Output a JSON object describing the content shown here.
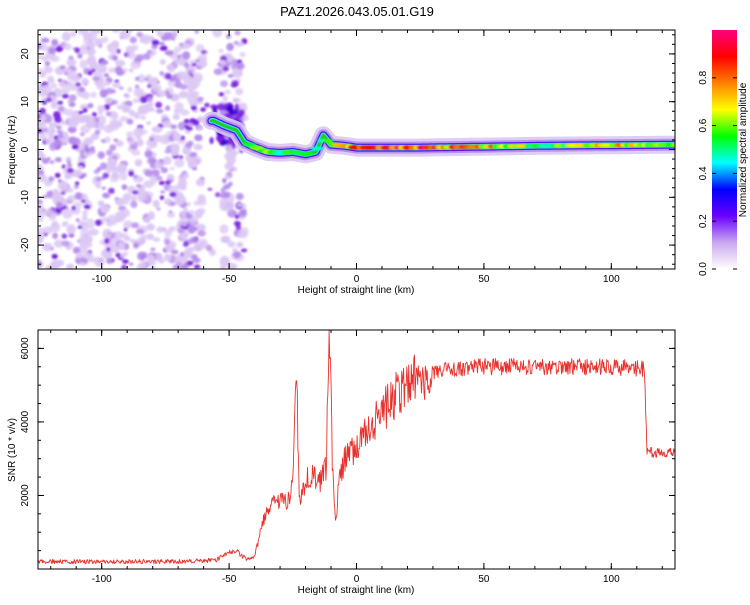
{
  "figure_title": "PAZ1.2026.043.05.01.G19",
  "colors": {
    "snr_line": "#e8312c",
    "axis": "#000000",
    "background": "#ffffff",
    "speckle_light": "#dcc8f4",
    "speckle_mid": "#b58ceb",
    "speckle_dark": "#7a1fe0",
    "ridge_cyan": "#33e0e0",
    "ridge_green": "#22cc22",
    "ridge_yellow": "#f0e000",
    "ridge_red": "#ee1133"
  },
  "chart_data": [
    {
      "id": "spectrogram",
      "type": "heatmap",
      "title": "PAZ1.2026.043.05.01.G19",
      "xlabel": "Height of straight line (km)",
      "ylabel": "Frequency (Hz)",
      "xlim": [
        -125,
        125
      ],
      "ylim": [
        -25,
        25
      ],
      "xticks": [
        -100,
        -50,
        0,
        50,
        100
      ],
      "xtick_labels": [
        "-100",
        "-50",
        "0",
        "50",
        "100"
      ],
      "yticks": [
        -20,
        -10,
        0,
        10,
        20
      ],
      "ytick_labels": [
        "-20",
        "-10",
        "0",
        "10",
        "20"
      ],
      "colorbar": {
        "label": "Normalized spectral amplitude",
        "range": [
          0,
          1
        ],
        "ticks": [
          0,
          0.2,
          0.4,
          0.6,
          0.8
        ],
        "tick_labels": [
          "0.0",
          "0.2",
          "0.4",
          "0.6",
          "0.8"
        ],
        "stops": [
          "#ffffff",
          "#c8a8f0",
          "#6a00ff",
          "#0000ff",
          "#00ffff",
          "#00ff00",
          "#ffff00",
          "#ff8000",
          "#ff0000",
          "#ff0080"
        ]
      },
      "noise_region_km": [
        -125,
        -44
      ],
      "noise_gap_km": [
        -60,
        -53
      ],
      "ridge_frequency_hz": [
        [
          -56,
          6
        ],
        [
          -52,
          5
        ],
        [
          -47,
          4
        ],
        [
          -44,
          1.5
        ],
        [
          -40,
          0.5
        ],
        [
          -35,
          -0.5
        ],
        [
          -30,
          -0.7
        ],
        [
          -25,
          -0.5
        ],
        [
          -20,
          -1
        ],
        [
          -16,
          -0.5
        ],
        [
          -13,
          3
        ],
        [
          -10,
          1
        ],
        [
          -5,
          0.8
        ],
        [
          0,
          0.4
        ],
        [
          25,
          0.4
        ],
        [
          50,
          0.6
        ],
        [
          75,
          0.8
        ],
        [
          100,
          0.9
        ],
        [
          125,
          1.0
        ]
      ],
      "ridge_amplitude": [
        [
          -56,
          0.3
        ],
        [
          -47,
          0.28
        ],
        [
          -44,
          0.4
        ],
        [
          -38,
          0.6
        ],
        [
          -30,
          0.55
        ],
        [
          -20,
          0.5
        ],
        [
          -13,
          0.45
        ],
        [
          -5,
          0.75
        ],
        [
          0,
          0.95
        ],
        [
          25,
          0.9
        ],
        [
          50,
          0.75
        ],
        [
          75,
          0.55
        ],
        [
          100,
          0.75
        ],
        [
          125,
          0.55
        ]
      ]
    },
    {
      "id": "snr",
      "type": "line",
      "xlabel": "Height of straight line (km)",
      "ylabel": "SNR (10 * v/v)",
      "xlim": [
        -125,
        125
      ],
      "ylim": [
        0,
        6500
      ],
      "xticks": [
        -100,
        -50,
        0,
        50,
        100
      ],
      "xtick_labels": [
        "-100",
        "-50",
        "0",
        "50",
        "100"
      ],
      "yticks": [
        2000,
        4000,
        6000
      ],
      "ytick_labels": [
        "2000",
        "4000",
        "6000"
      ],
      "series": [
        {
          "name": "SNR",
          "x": [
            -125,
            -100,
            -75,
            -60,
            -55,
            -50,
            -47,
            -45,
            -42,
            -40,
            -38,
            -35,
            -30,
            -27,
            -25,
            -23.5,
            -22.5,
            -20,
            -17,
            -15,
            -12,
            -10.5,
            -9.5,
            -8,
            -7,
            -5,
            0,
            5,
            10,
            15,
            20,
            25,
            30,
            40,
            50,
            60,
            70,
            80,
            90,
            100,
            110,
            113,
            114,
            118,
            125
          ],
          "y": [
            200,
            200,
            200,
            220,
            250,
            450,
            500,
            350,
            250,
            350,
            900,
            1700,
            1800,
            1900,
            2200,
            5500,
            1800,
            2400,
            2500,
            2300,
            2700,
            6500,
            2700,
            1300,
            2600,
            2900,
            3300,
            3800,
            4300,
            4700,
            5000,
            5200,
            5350,
            5450,
            5500,
            5500,
            5500,
            5500,
            5500,
            5500,
            5450,
            5450,
            3200,
            3150,
            3150
          ]
        }
      ]
    }
  ]
}
